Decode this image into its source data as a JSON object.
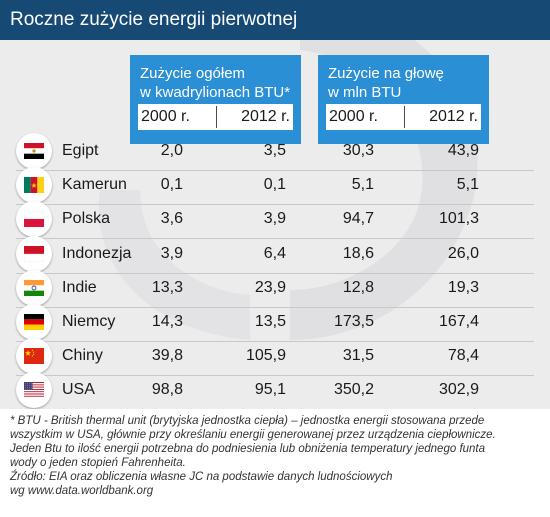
{
  "title": "Roczne zużycie energii pierwotnej",
  "header": {
    "total_title_line1": "Zużycie ogółem",
    "total_title_line2": "w kwadrylionach BTU*",
    "capita_title_line1": "Zużycie na głowę",
    "capita_title_line2": "w mln BTU",
    "year_a": "2000 r.",
    "year_b": "2012 r."
  },
  "chart_data": {
    "type": "table",
    "title": "Roczne zużycie energii pierwotnej",
    "columns": [
      "Zużycie ogółem w kwadrylionach BTU* 2000 r.",
      "Zużycie ogółem w kwadrylionach BTU* 2012 r.",
      "Zużycie na głowę w mln BTU 2000 r.",
      "Zużycie na głowę w mln BTU 2012 r."
    ],
    "rows": [
      {
        "country": "Egipt",
        "flag": "egypt-flag-icon",
        "values": [
          "2,0",
          "3,5",
          "30,3",
          "43,9"
        ]
      },
      {
        "country": "Kamerun",
        "flag": "cameroon-flag-icon",
        "values": [
          "0,1",
          "0,1",
          "5,1",
          "5,1"
        ]
      },
      {
        "country": "Polska",
        "flag": "poland-flag-icon",
        "values": [
          "3,6",
          "3,9",
          "94,7",
          "101,3"
        ]
      },
      {
        "country": "Indonezja",
        "flag": "indonesia-flag-icon",
        "values": [
          "3,9",
          "6,4",
          "18,6",
          "26,0"
        ]
      },
      {
        "country": "Indie",
        "flag": "india-flag-icon",
        "values": [
          "13,3",
          "23,9",
          "12,8",
          "19,3"
        ]
      },
      {
        "country": "Niemcy",
        "flag": "germany-flag-icon",
        "values": [
          "14,3",
          "13,5",
          "173,5",
          "167,4"
        ]
      },
      {
        "country": "Chiny",
        "flag": "china-flag-icon",
        "values": [
          "39,8",
          "105,9",
          "31,5",
          "78,4"
        ]
      },
      {
        "country": "USA",
        "flag": "usa-flag-icon",
        "values": [
          "98,8",
          "95,1",
          "350,2",
          "302,9"
        ]
      }
    ]
  },
  "footnote": [
    "* BTU - British thermal unit (brytyjska jednostka ciepła) – jednostka energii stosowana przede",
    "wszystkim w USA, głównie przy określaniu energii generowanej przez urządzenia ciepłownicze.",
    "Jeden Btu to ilość energii potrzebna do podniesienia lub obniżenia temperatury jednego funta",
    "wody o jeden stopień Fahrenheita.",
    "Źródło: EIA oraz obliczenia własne JC na podstawie danych ludnościowych",
    "wg www.data.worldbank.org"
  ],
  "colors": {
    "title_bar": "#164a74",
    "header_box": "#2a8fd4",
    "panel": "#ececed",
    "swirl": "#e0e0e2"
  }
}
